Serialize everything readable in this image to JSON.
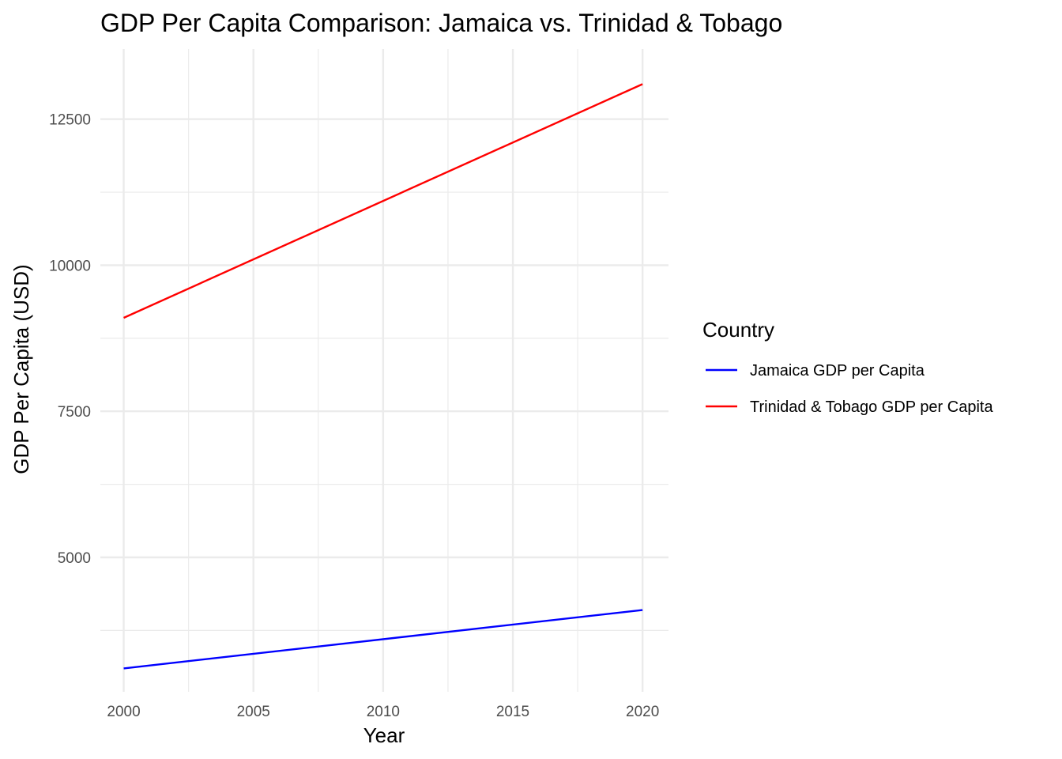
{
  "chart_data": {
    "type": "line",
    "title": "GDP Per Capita Comparison: Jamaica vs. Trinidad & Tobago",
    "xlabel": "Year",
    "ylabel": "GDP Per Capita (USD)",
    "x": [
      2000,
      2020
    ],
    "x_ticks": [
      "2000",
      "2005",
      "2010",
      "2015",
      "2020"
    ],
    "y_ticks": [
      "5000",
      "7500",
      "10000",
      "12500"
    ],
    "xlim": [
      1999.1,
      2021
    ],
    "ylim": [
      2700,
      13700
    ],
    "grid": true,
    "legend": {
      "title": "Country",
      "position": "right"
    },
    "series": [
      {
        "name": "Jamaica GDP per Capita",
        "color": "#0000ff",
        "values": [
          3100,
          4100
        ]
      },
      {
        "name": "Trinidad & Tobago GDP per Capita",
        "color": "#ff0000",
        "values": [
          9100,
          13100
        ]
      }
    ]
  }
}
